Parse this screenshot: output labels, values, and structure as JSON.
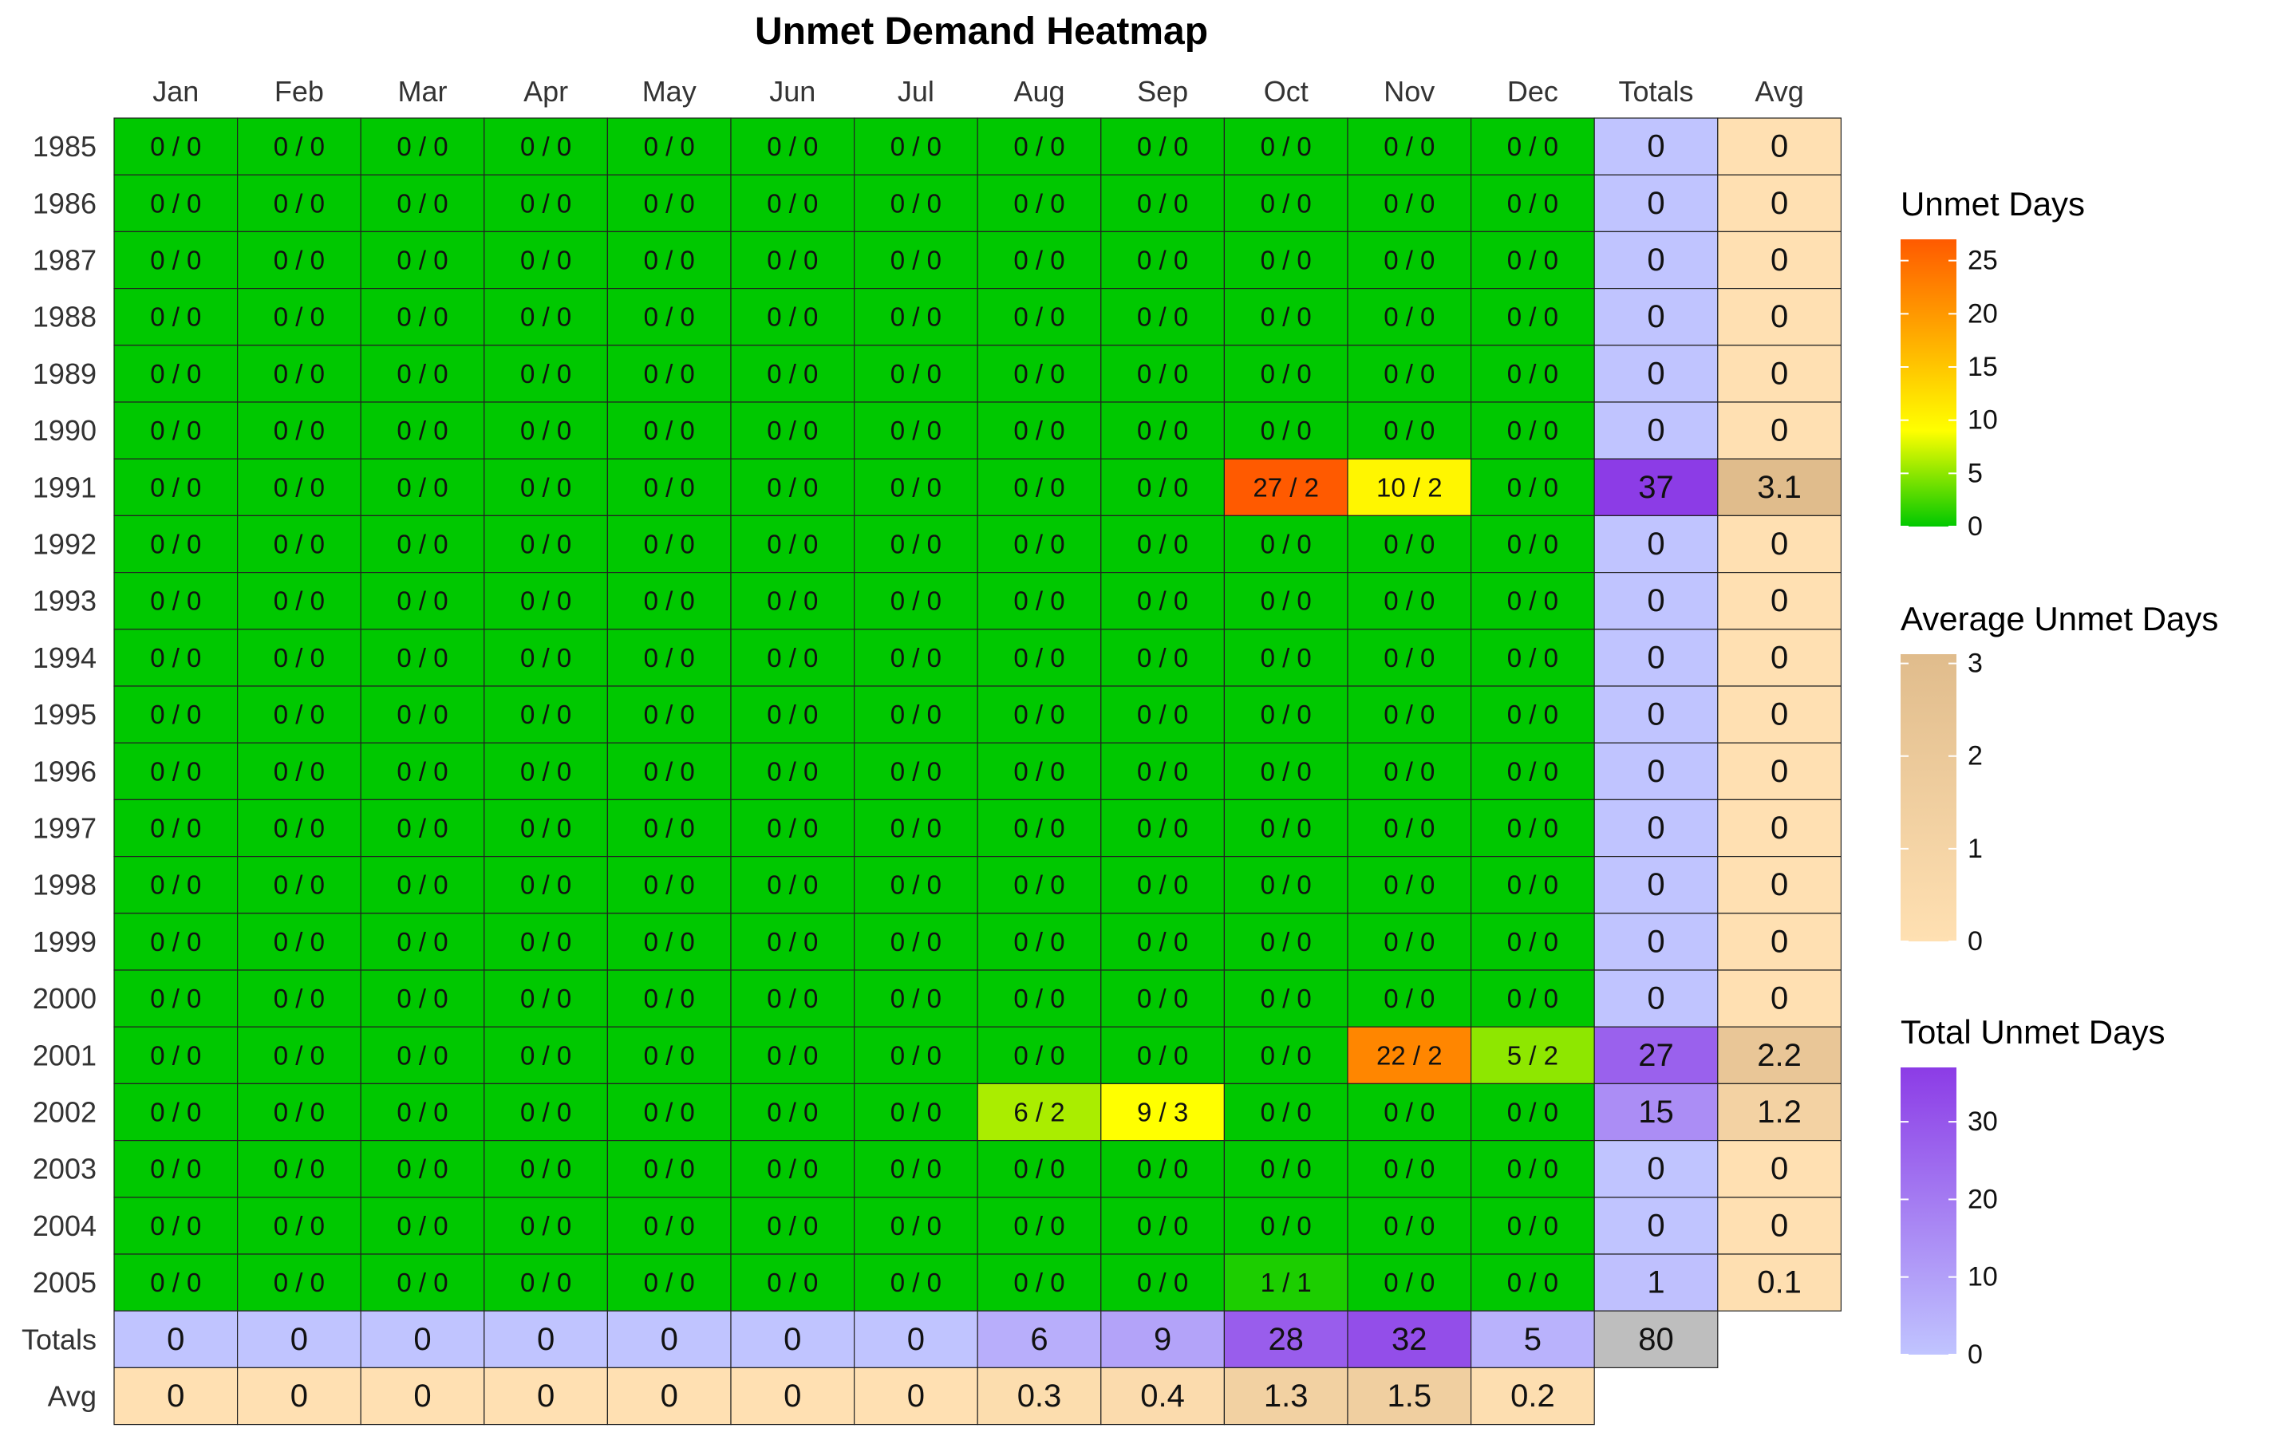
{
  "chart_data": {
    "type": "heatmap",
    "title": "Unmet Demand Heatmap",
    "months": [
      "Jan",
      "Feb",
      "Mar",
      "Apr",
      "May",
      "Jun",
      "Jul",
      "Aug",
      "Sep",
      "Oct",
      "Nov",
      "Dec"
    ],
    "totals_label": "Totals",
    "avg_label": "Avg",
    "years": [
      "1985",
      "1986",
      "1987",
      "1988",
      "1989",
      "1990",
      "1991",
      "1992",
      "1993",
      "1994",
      "1995",
      "1996",
      "1997",
      "1998",
      "1999",
      "2000",
      "2001",
      "2002",
      "2003",
      "2004",
      "2005"
    ],
    "cells": [
      [
        "0 / 0",
        "0 / 0",
        "0 / 0",
        "0 / 0",
        "0 / 0",
        "0 / 0",
        "0 / 0",
        "0 / 0",
        "0 / 0",
        "0 / 0",
        "0 / 0",
        "0 / 0"
      ],
      [
        "0 / 0",
        "0 / 0",
        "0 / 0",
        "0 / 0",
        "0 / 0",
        "0 / 0",
        "0 / 0",
        "0 / 0",
        "0 / 0",
        "0 / 0",
        "0 / 0",
        "0 / 0"
      ],
      [
        "0 / 0",
        "0 / 0",
        "0 / 0",
        "0 / 0",
        "0 / 0",
        "0 / 0",
        "0 / 0",
        "0 / 0",
        "0 / 0",
        "0 / 0",
        "0 / 0",
        "0 / 0"
      ],
      [
        "0 / 0",
        "0 / 0",
        "0 / 0",
        "0 / 0",
        "0 / 0",
        "0 / 0",
        "0 / 0",
        "0 / 0",
        "0 / 0",
        "0 / 0",
        "0 / 0",
        "0 / 0"
      ],
      [
        "0 / 0",
        "0 / 0",
        "0 / 0",
        "0 / 0",
        "0 / 0",
        "0 / 0",
        "0 / 0",
        "0 / 0",
        "0 / 0",
        "0 / 0",
        "0 / 0",
        "0 / 0"
      ],
      [
        "0 / 0",
        "0 / 0",
        "0 / 0",
        "0 / 0",
        "0 / 0",
        "0 / 0",
        "0 / 0",
        "0 / 0",
        "0 / 0",
        "0 / 0",
        "0 / 0",
        "0 / 0"
      ],
      [
        "0 / 0",
        "0 / 0",
        "0 / 0",
        "0 / 0",
        "0 / 0",
        "0 / 0",
        "0 / 0",
        "0 / 0",
        "0 / 0",
        "27 / 2",
        "10 / 2",
        "0 / 0"
      ],
      [
        "0 / 0",
        "0 / 0",
        "0 / 0",
        "0 / 0",
        "0 / 0",
        "0 / 0",
        "0 / 0",
        "0 / 0",
        "0 / 0",
        "0 / 0",
        "0 / 0",
        "0 / 0"
      ],
      [
        "0 / 0",
        "0 / 0",
        "0 / 0",
        "0 / 0",
        "0 / 0",
        "0 / 0",
        "0 / 0",
        "0 / 0",
        "0 / 0",
        "0 / 0",
        "0 / 0",
        "0 / 0"
      ],
      [
        "0 / 0",
        "0 / 0",
        "0 / 0",
        "0 / 0",
        "0 / 0",
        "0 / 0",
        "0 / 0",
        "0 / 0",
        "0 / 0",
        "0 / 0",
        "0 / 0",
        "0 / 0"
      ],
      [
        "0 / 0",
        "0 / 0",
        "0 / 0",
        "0 / 0",
        "0 / 0",
        "0 / 0",
        "0 / 0",
        "0 / 0",
        "0 / 0",
        "0 / 0",
        "0 / 0",
        "0 / 0"
      ],
      [
        "0 / 0",
        "0 / 0",
        "0 / 0",
        "0 / 0",
        "0 / 0",
        "0 / 0",
        "0 / 0",
        "0 / 0",
        "0 / 0",
        "0 / 0",
        "0 / 0",
        "0 / 0"
      ],
      [
        "0 / 0",
        "0 / 0",
        "0 / 0",
        "0 / 0",
        "0 / 0",
        "0 / 0",
        "0 / 0",
        "0 / 0",
        "0 / 0",
        "0 / 0",
        "0 / 0",
        "0 / 0"
      ],
      [
        "0 / 0",
        "0 / 0",
        "0 / 0",
        "0 / 0",
        "0 / 0",
        "0 / 0",
        "0 / 0",
        "0 / 0",
        "0 / 0",
        "0 / 0",
        "0 / 0",
        "0 / 0"
      ],
      [
        "0 / 0",
        "0 / 0",
        "0 / 0",
        "0 / 0",
        "0 / 0",
        "0 / 0",
        "0 / 0",
        "0 / 0",
        "0 / 0",
        "0 / 0",
        "0 / 0",
        "0 / 0"
      ],
      [
        "0 / 0",
        "0 / 0",
        "0 / 0",
        "0 / 0",
        "0 / 0",
        "0 / 0",
        "0 / 0",
        "0 / 0",
        "0 / 0",
        "0 / 0",
        "0 / 0",
        "0 / 0"
      ],
      [
        "0 / 0",
        "0 / 0",
        "0 / 0",
        "0 / 0",
        "0 / 0",
        "0 / 0",
        "0 / 0",
        "0 / 0",
        "0 / 0",
        "0 / 0",
        "22 / 2",
        "5 / 2"
      ],
      [
        "0 / 0",
        "0 / 0",
        "0 / 0",
        "0 / 0",
        "0 / 0",
        "0 / 0",
        "0 / 0",
        "6 / 2",
        "9 / 3",
        "0 / 0",
        "0 / 0",
        "0 / 0"
      ],
      [
        "0 / 0",
        "0 / 0",
        "0 / 0",
        "0 / 0",
        "0 / 0",
        "0 / 0",
        "0 / 0",
        "0 / 0",
        "0 / 0",
        "0 / 0",
        "0 / 0",
        "0 / 0"
      ],
      [
        "0 / 0",
        "0 / 0",
        "0 / 0",
        "0 / 0",
        "0 / 0",
        "0 / 0",
        "0 / 0",
        "0 / 0",
        "0 / 0",
        "0 / 0",
        "0 / 0",
        "0 / 0"
      ],
      [
        "0 / 0",
        "0 / 0",
        "0 / 0",
        "0 / 0",
        "0 / 0",
        "0 / 0",
        "0 / 0",
        "0 / 0",
        "0 / 0",
        "1 / 1",
        "0 / 0",
        "0 / 0"
      ]
    ],
    "row_totals": [
      "0",
      "0",
      "0",
      "0",
      "0",
      "0",
      "37",
      "0",
      "0",
      "0",
      "0",
      "0",
      "0",
      "0",
      "0",
      "0",
      "27",
      "15",
      "0",
      "0",
      "1"
    ],
    "row_avgs": [
      "0",
      "0",
      "0",
      "0",
      "0",
      "0",
      "3.1",
      "0",
      "0",
      "0",
      "0",
      "0",
      "0",
      "0",
      "0",
      "0",
      "2.2",
      "1.2",
      "0",
      "0",
      "0.1"
    ],
    "col_totals": [
      "0",
      "0",
      "0",
      "0",
      "0",
      "0",
      "0",
      "6",
      "9",
      "28",
      "32",
      "5"
    ],
    "col_avgs": [
      "0",
      "0",
      "0",
      "0",
      "0",
      "0",
      "0",
      "0.3",
      "0.4",
      "1.3",
      "1.5",
      "0.2"
    ],
    "grand_total": "80",
    "legends": [
      {
        "title": "Unmet Days",
        "ticks": [
          "25",
          "20",
          "15",
          "10",
          "5",
          "0"
        ],
        "tick_values": [
          25,
          20,
          15,
          10,
          5,
          0
        ],
        "range": [
          0,
          27
        ],
        "colors": [
          "#00c800",
          "#ffff00",
          "#ffaa00",
          "#ff5a00"
        ]
      },
      {
        "title": "Average Unmet Days",
        "ticks": [
          "3",
          "2",
          "1",
          "0"
        ],
        "tick_values": [
          3,
          2,
          1,
          0
        ],
        "range": [
          0,
          3.1
        ],
        "colors": [
          "#ffe0b2",
          "#e0bc8c"
        ]
      },
      {
        "title": "Total Unmet Days",
        "ticks": [
          "30",
          "20",
          "10",
          "0"
        ],
        "tick_values": [
          30,
          20,
          10,
          0
        ],
        "range": [
          0,
          37
        ],
        "colors": [
          "#c0c4ff",
          "#8c3ce6"
        ]
      }
    ],
    "colors": {
      "grand_total_fill": "#bebebe",
      "cell_border": "#222222"
    }
  }
}
